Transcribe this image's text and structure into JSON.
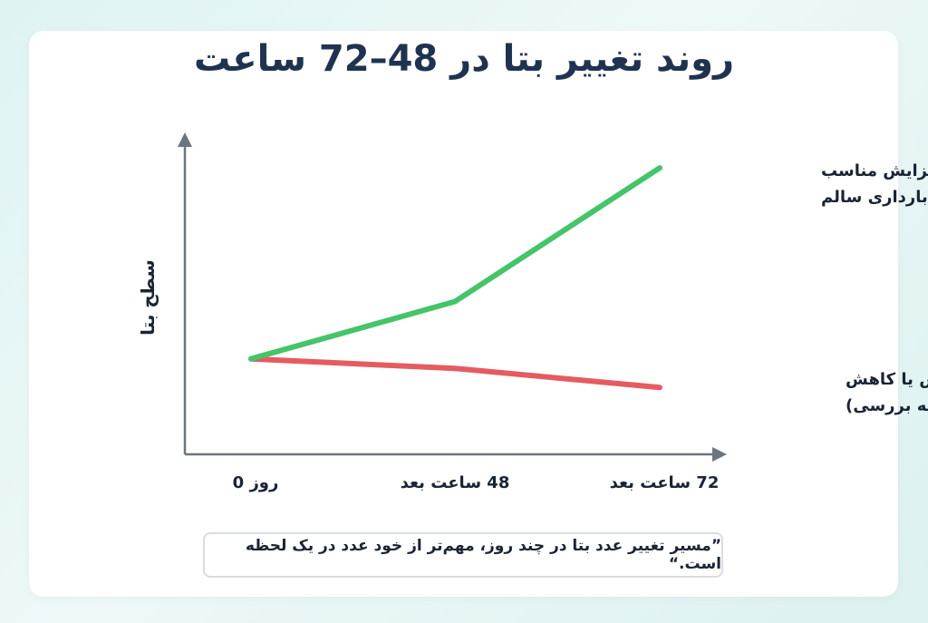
{
  "title": "روند تغییر بتا در 48–72 ساعت",
  "note": "”مسیر تغییر عدد بتا در چند روز، مهم‌تر از خود عدد در یک لحظه است.“",
  "colors": {
    "green": "#45c46a",
    "red": "#e55b61",
    "axis": "#6b7580",
    "text": "#1a2433",
    "title": "#1f3350"
  },
  "chart_data": {
    "type": "line",
    "title": "روند تغییر بتا در 48–72 ساعت",
    "xlabel": "",
    "ylabel": "سطح بتا",
    "categories": [
      "روز 0",
      "48 ساعت بعد",
      "72 ساعت بعد"
    ],
    "ylim": [
      0,
      10
    ],
    "grid": false,
    "series": [
      {
        "name_lines": [
          "افزایش مناسب",
          "(بارداری سالم"
        ],
        "color": "#45c46a",
        "values": [
          3.0,
          4.8,
          9.0
        ]
      },
      {
        "name_lines": [
          "عدم افزایش یا کاهش",
          "(نیاز به بررسی)"
        ],
        "color": "#e55b61",
        "values": [
          3.0,
          2.7,
          2.1
        ]
      }
    ]
  }
}
